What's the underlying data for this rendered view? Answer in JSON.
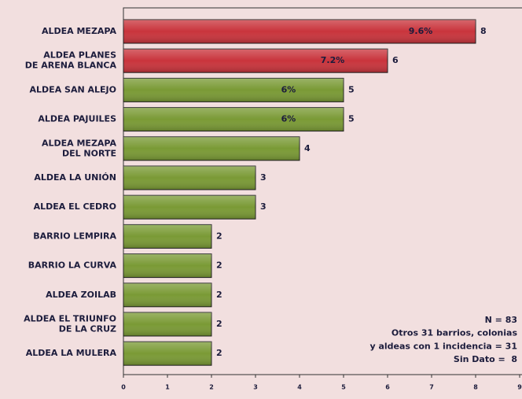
{
  "chart_data": {
    "type": "hbar",
    "categories": [
      "ALDEA MEZAPA",
      "ALDEA PLANES\nDE ARENA BLANCA",
      "ALDEA SAN ALEJO",
      "ALDEA PAJUILES",
      "ALDEA MEZAPA\nDEL NORTE",
      "ALDEA LA UNIÓN",
      "ALDEA EL CEDRO",
      "BARRIO LEMPIRA",
      "BARRIO LA CURVA",
      "ALDEA ZOILAB",
      "ALDEA EL TRIUNFO\nDE LA CRUZ",
      "ALDEA LA MULERA"
    ],
    "values": [
      8,
      6,
      5,
      5,
      4,
      3,
      3,
      2,
      2,
      2,
      2,
      2
    ],
    "percent_labels": [
      "9.6%",
      "7.2%",
      "6%",
      "6%",
      null,
      null,
      null,
      null,
      null,
      null,
      null,
      null
    ],
    "colors": [
      "#c9343c",
      "#c9343c",
      "#7a9a35",
      "#7a9a35",
      "#7a9a35",
      "#7a9a35",
      "#7a9a35",
      "#7a9a35",
      "#7a9a35",
      "#7a9a35",
      "#7a9a35",
      "#7a9a35"
    ],
    "xlim": [
      0,
      9
    ],
    "xticks": [
      0,
      1,
      2,
      3,
      4,
      5,
      6,
      7,
      8,
      9
    ],
    "notes": [
      "N = 83",
      "Otros 31 barrios, colonias",
      "y aldeas con 1 incidencia = 31",
      "Sin Dato =  8"
    ]
  }
}
